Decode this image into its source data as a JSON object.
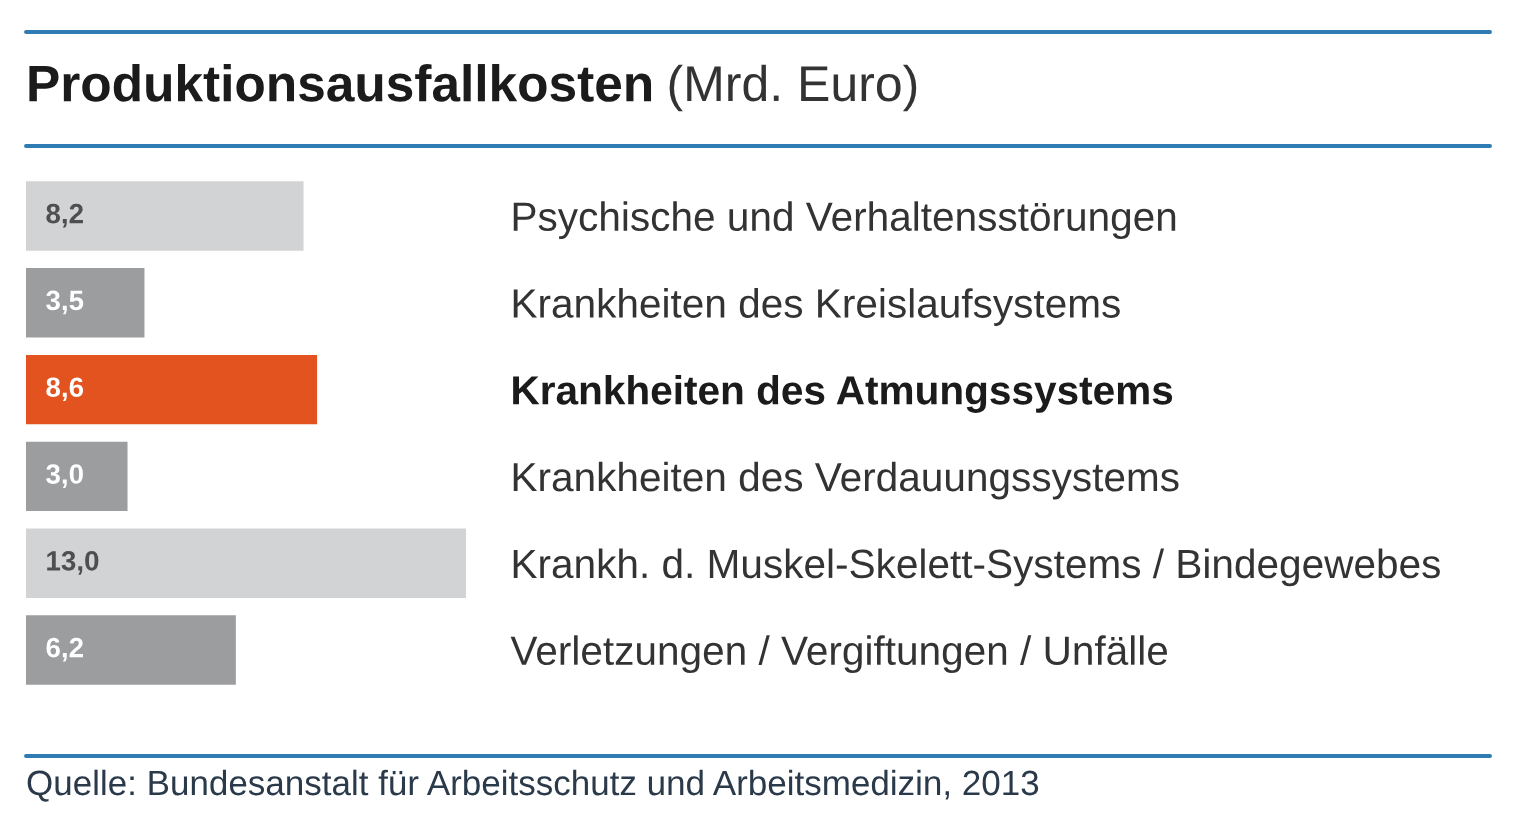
{
  "chart_data": {
    "type": "bar",
    "orientation": "horizontal",
    "title": "Produktionsausfallkosten",
    "subtitle": "(Mrd. Euro)",
    "categories": [
      "Psychische und Verhaltensstörungen",
      "Krankheiten des Kreislaufsystems",
      "Krankheiten des Atmungssystems",
      "Krankheiten des Verdauungssystems",
      "Krankh. d. Muskel-Skelett-Systems / Bindegewebes",
      "Verletzungen / Vergiftungen / Unfälle"
    ],
    "values": [
      8.2,
      3.5,
      8.6,
      3.0,
      13.0,
      6.2
    ],
    "colors": [
      "#d2d3d5",
      "#9c9d9f",
      "#e2531f",
      "#9c9d9f",
      "#d2d3d5",
      "#9c9d9f"
    ],
    "value_labels": [
      "8,2",
      "3,5",
      "8,6",
      "3,0",
      "13,0",
      "6,2"
    ],
    "xlim": [
      0,
      13
    ],
    "annotations": [
      "Quelle: Bundesanstalt für Arbeitsschutz und Arbeitsmedizin, 2013"
    ]
  }
}
